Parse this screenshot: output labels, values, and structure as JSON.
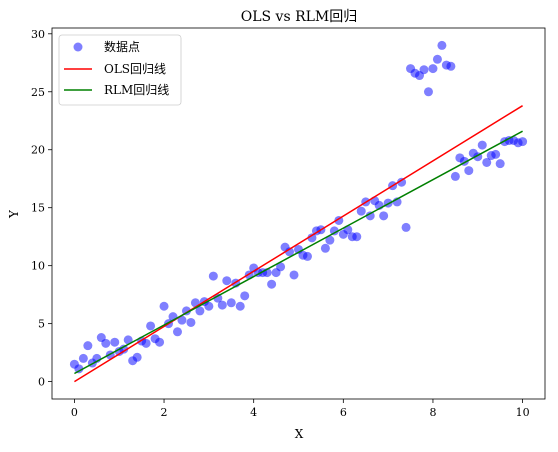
{
  "chart_data": {
    "type": "scatter",
    "title": "OLS vs RLM回归",
    "xlabel": "X",
    "ylabel": "Y",
    "xlim": [
      -0.5,
      10.5
    ],
    "ylim": [
      -1.5,
      30.5
    ],
    "xticks": [
      0,
      2,
      4,
      6,
      8,
      10
    ],
    "yticks": [
      0,
      5,
      10,
      15,
      20,
      25,
      30
    ],
    "legend_position": "top-left",
    "grid": false,
    "scatter": {
      "name": "数据点",
      "color": "#0000ff",
      "points": [
        [
          0.0,
          1.5
        ],
        [
          0.1,
          1.1
        ],
        [
          0.2,
          2.0
        ],
        [
          0.3,
          3.1
        ],
        [
          0.4,
          1.6
        ],
        [
          0.5,
          2.0
        ],
        [
          0.6,
          3.8
        ],
        [
          0.7,
          3.3
        ],
        [
          0.8,
          2.3
        ],
        [
          0.9,
          3.4
        ],
        [
          1.0,
          2.6
        ],
        [
          1.1,
          2.8
        ],
        [
          1.2,
          3.6
        ],
        [
          1.3,
          1.8
        ],
        [
          1.4,
          2.1
        ],
        [
          1.5,
          3.5
        ],
        [
          1.6,
          3.3
        ],
        [
          1.7,
          4.8
        ],
        [
          1.8,
          3.7
        ],
        [
          1.9,
          3.4
        ],
        [
          2.0,
          6.5
        ],
        [
          2.1,
          5.0
        ],
        [
          2.2,
          5.6
        ],
        [
          2.3,
          4.3
        ],
        [
          2.4,
          5.3
        ],
        [
          2.5,
          6.1
        ],
        [
          2.6,
          5.1
        ],
        [
          2.7,
          6.8
        ],
        [
          2.8,
          6.1
        ],
        [
          2.9,
          6.9
        ],
        [
          3.0,
          6.5
        ],
        [
          3.1,
          9.1
        ],
        [
          3.2,
          7.2
        ],
        [
          3.3,
          6.6
        ],
        [
          3.4,
          8.7
        ],
        [
          3.5,
          6.8
        ],
        [
          3.6,
          8.5
        ],
        [
          3.7,
          6.5
        ],
        [
          3.8,
          7.4
        ],
        [
          3.9,
          9.2
        ],
        [
          4.0,
          9.8
        ],
        [
          4.1,
          9.4
        ],
        [
          4.2,
          9.4
        ],
        [
          4.3,
          9.4
        ],
        [
          4.4,
          8.4
        ],
        [
          4.5,
          9.4
        ],
        [
          4.6,
          9.9
        ],
        [
          4.7,
          11.6
        ],
        [
          4.8,
          11.2
        ],
        [
          4.9,
          9.2
        ],
        [
          5.0,
          11.4
        ],
        [
          5.1,
          10.9
        ],
        [
          5.2,
          10.8
        ],
        [
          5.3,
          12.4
        ],
        [
          5.4,
          13.0
        ],
        [
          5.5,
          13.1
        ],
        [
          5.6,
          11.5
        ],
        [
          5.7,
          12.2
        ],
        [
          5.8,
          13.0
        ],
        [
          5.9,
          13.9
        ],
        [
          6.0,
          12.7
        ],
        [
          6.1,
          13.1
        ],
        [
          6.2,
          12.5
        ],
        [
          6.3,
          12.5
        ],
        [
          6.4,
          14.7
        ],
        [
          6.5,
          15.5
        ],
        [
          6.6,
          14.3
        ],
        [
          6.7,
          15.6
        ],
        [
          6.8,
          15.2
        ],
        [
          6.9,
          14.3
        ],
        [
          7.0,
          15.4
        ],
        [
          7.1,
          16.9
        ],
        [
          7.2,
          15.5
        ],
        [
          7.3,
          17.2
        ],
        [
          7.4,
          13.3
        ],
        [
          7.5,
          27.0
        ],
        [
          7.6,
          26.6
        ],
        [
          7.7,
          26.4
        ],
        [
          7.8,
          26.9
        ],
        [
          7.9,
          25.0
        ],
        [
          8.0,
          27.0
        ],
        [
          8.1,
          27.8
        ],
        [
          8.2,
          29.0
        ],
        [
          8.3,
          27.3
        ],
        [
          8.4,
          27.2
        ],
        [
          8.5,
          17.7
        ],
        [
          8.6,
          19.3
        ],
        [
          8.7,
          19.0
        ],
        [
          8.8,
          18.2
        ],
        [
          8.9,
          19.7
        ],
        [
          9.0,
          19.4
        ],
        [
          9.1,
          20.4
        ],
        [
          9.2,
          18.9
        ],
        [
          9.3,
          19.5
        ],
        [
          9.4,
          19.6
        ],
        [
          9.5,
          18.8
        ],
        [
          9.6,
          20.7
        ],
        [
          9.7,
          20.8
        ],
        [
          9.8,
          20.8
        ],
        [
          9.9,
          20.6
        ],
        [
          10.0,
          20.7
        ]
      ]
    },
    "lines": [
      {
        "name": "OLS回归线",
        "color": "#ff0000",
        "x": [
          0,
          10
        ],
        "y": [
          0.0,
          23.8
        ]
      },
      {
        "name": "RLM回归线",
        "color": "#008000",
        "x": [
          0,
          10
        ],
        "y": [
          0.7,
          21.6
        ]
      }
    ]
  }
}
